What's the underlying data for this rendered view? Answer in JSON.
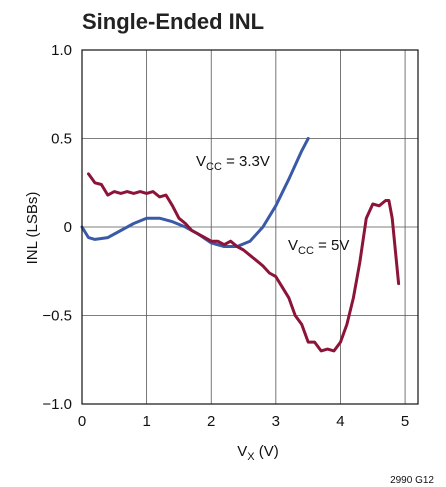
{
  "chart_data": {
    "type": "line",
    "title": "Single-Ended INL",
    "xlabel": {
      "main": "V",
      "sub": "X",
      "tail": " (V)"
    },
    "ylabel": "INL (LSBs)",
    "xlim": [
      0,
      5.2
    ],
    "ylim": [
      -1.0,
      1.0
    ],
    "xticks": [
      "0",
      "1",
      "2",
      "3",
      "4",
      "5"
    ],
    "xtick_values": [
      0,
      1,
      2,
      3,
      4,
      5
    ],
    "yticks": [
      "1.0",
      "0.5",
      "0",
      "−0.5",
      "−1.0"
    ],
    "ytick_values": [
      1.0,
      0.5,
      0,
      -0.5,
      -1.0
    ],
    "grid": true,
    "figure_id": "2990 G12",
    "series": [
      {
        "name": "VCC = 3.3V",
        "label": {
          "main": "V",
          "sub": "CC",
          "tail": " = 3.3V"
        },
        "color": "#3a5aa8",
        "x": [
          0,
          0.1,
          0.2,
          0.4,
          0.6,
          0.8,
          1.0,
          1.2,
          1.4,
          1.6,
          1.8,
          2.0,
          2.2,
          2.4,
          2.6,
          2.8,
          3.0,
          3.2,
          3.4,
          3.5
        ],
        "y": [
          0.0,
          -0.06,
          -0.07,
          -0.06,
          -0.02,
          0.02,
          0.05,
          0.05,
          0.03,
          0.0,
          -0.04,
          -0.09,
          -0.11,
          -0.11,
          -0.08,
          0.0,
          0.12,
          0.27,
          0.43,
          0.5
        ]
      },
      {
        "name": "VCC = 5V",
        "label": {
          "main": "V",
          "sub": "CC",
          "tail": " = 5V"
        },
        "color": "#8c1438",
        "x": [
          0.1,
          0.2,
          0.3,
          0.4,
          0.5,
          0.6,
          0.7,
          0.8,
          0.9,
          1.0,
          1.1,
          1.2,
          1.3,
          1.4,
          1.5,
          1.6,
          1.7,
          1.8,
          1.9,
          2.0,
          2.1,
          2.2,
          2.3,
          2.4,
          2.5,
          2.6,
          2.7,
          2.8,
          2.9,
          3.0,
          3.1,
          3.2,
          3.3,
          3.4,
          3.5,
          3.6,
          3.7,
          3.8,
          3.9,
          4.0,
          4.1,
          4.2,
          4.3,
          4.4,
          4.5,
          4.6,
          4.7,
          4.75,
          4.8,
          4.9
        ],
        "y": [
          0.3,
          0.25,
          0.24,
          0.18,
          0.2,
          0.19,
          0.2,
          0.19,
          0.2,
          0.19,
          0.2,
          0.17,
          0.18,
          0.12,
          0.05,
          0.02,
          -0.02,
          -0.04,
          -0.06,
          -0.08,
          -0.08,
          -0.1,
          -0.08,
          -0.11,
          -0.13,
          -0.16,
          -0.19,
          -0.22,
          -0.26,
          -0.28,
          -0.34,
          -0.4,
          -0.5,
          -0.55,
          -0.65,
          -0.65,
          -0.7,
          -0.69,
          -0.7,
          -0.65,
          -0.55,
          -0.4,
          -0.2,
          0.05,
          0.13,
          0.12,
          0.15,
          0.15,
          0.05,
          -0.32
        ]
      }
    ]
  }
}
